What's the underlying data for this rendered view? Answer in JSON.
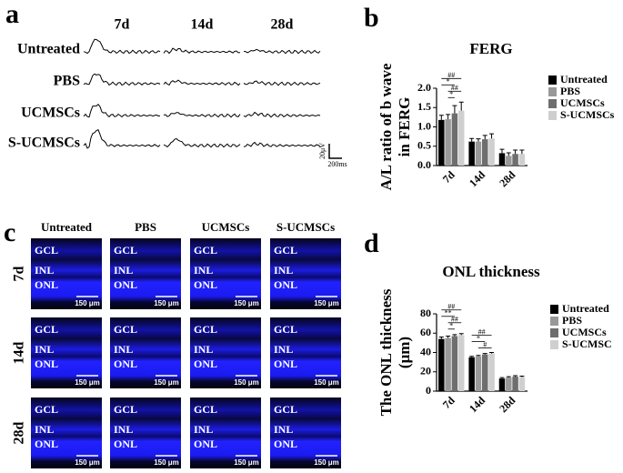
{
  "panel_a": {
    "label": "a",
    "columns": [
      "7d",
      "14d",
      "28d"
    ],
    "rows": [
      "Untreated",
      "PBS",
      "UCMSCs",
      "S-UCMSCs"
    ],
    "scale_y": "20μV",
    "scale_x": "200ms"
  },
  "panel_c": {
    "label": "c",
    "columns": [
      "Untreated",
      "PBS",
      "UCMSCs",
      "S-UCMSCs"
    ],
    "rows": [
      "7d",
      "14d",
      "28d"
    ],
    "layer_labels": [
      "GCL",
      "INL",
      "ONL"
    ],
    "scale_bar": "150 μm"
  },
  "chart_data": [
    {
      "type": "bar",
      "panel_label": "b",
      "title": "FERG",
      "ylabel": [
        "A/L ratio of b wave",
        "in FERG"
      ],
      "categories": [
        "7d",
        "14d",
        "28d"
      ],
      "ylim": [
        0,
        2.0
      ],
      "yticks": [
        {
          "value": 0,
          "label": "0.0"
        },
        {
          "value": 0.5,
          "label": "0.5"
        },
        {
          "value": 1.0,
          "label": "1.0"
        },
        {
          "value": 1.5,
          "label": "1.5"
        },
        {
          "value": 2.0,
          "label": "2.0"
        }
      ],
      "series": [
        {
          "name": "Untreated",
          "color": "#000000",
          "values": [
            1.18,
            0.62,
            0.32
          ],
          "errors": [
            0.12,
            0.08,
            0.1
          ]
        },
        {
          "name": "PBS",
          "color": "#999999",
          "values": [
            1.2,
            0.62,
            0.25
          ],
          "errors": [
            0.12,
            0.07,
            0.08
          ]
        },
        {
          "name": "UCMSCs",
          "color": "#6e6e6e",
          "values": [
            1.35,
            0.68,
            0.3
          ],
          "errors": [
            0.2,
            0.1,
            0.1
          ]
        },
        {
          "name": "S-UCMSCs",
          "color": "#cfcfcf",
          "values": [
            1.42,
            0.7,
            0.3
          ],
          "errors": [
            0.22,
            0.12,
            0.1
          ]
        }
      ],
      "annotations": {
        "7d": [
          "##",
          "*",
          "##",
          "*"
        ]
      }
    },
    {
      "type": "bar",
      "panel_label": "d",
      "title": "ONL thickness",
      "ylabel": [
        "The ONL thickness",
        "(μm)"
      ],
      "categories": [
        "7d",
        "14d",
        "28d"
      ],
      "ylim": [
        0,
        80
      ],
      "yticks": [
        0,
        20,
        40,
        60,
        80
      ],
      "series": [
        {
          "name": "Untreated",
          "color": "#000000",
          "values": [
            54,
            35,
            13
          ],
          "errors": [
            2,
            1,
            1
          ]
        },
        {
          "name": "PBS",
          "color": "#999999",
          "values": [
            55,
            36,
            14
          ],
          "errors": [
            2,
            1,
            1
          ]
        },
        {
          "name": "UCMSCs",
          "color": "#6e6e6e",
          "values": [
            57,
            38,
            15
          ],
          "errors": [
            1.5,
            1,
            1
          ]
        },
        {
          "name": "S-UCMSC",
          "color": "#cfcfcf",
          "values": [
            58,
            39,
            14.5
          ],
          "errors": [
            1.5,
            1,
            1
          ]
        }
      ],
      "annotations": {
        "7d": [
          "##",
          "**",
          "##",
          "*"
        ],
        "14d": [
          "##",
          "*",
          "#"
        ]
      }
    }
  ]
}
